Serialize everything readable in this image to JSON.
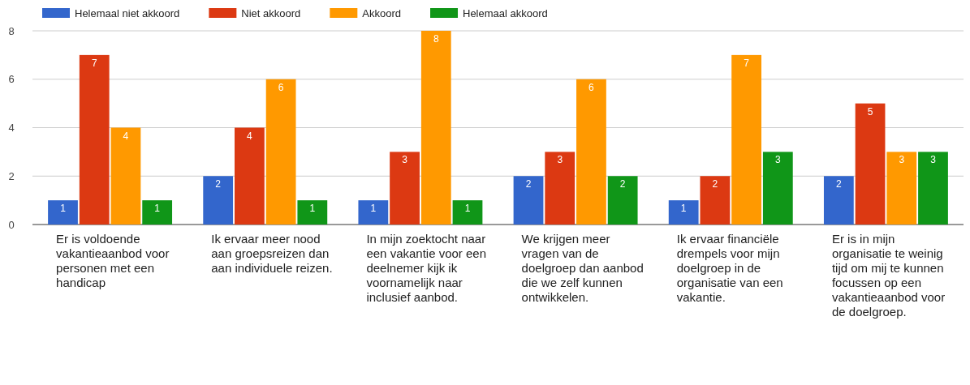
{
  "chart_data": {
    "type": "bar",
    "categories": [
      "Er is voldoende vakantieaanbod voor personen met een handicap",
      "Ik ervaar meer nood aan groepsreizen dan aan individuele reizen.",
      "In mijn zoektocht naar een vakantie voor een deelnemer kijk ik voornamelijk naar inclusief aanbod.",
      "We krijgen meer vragen van de doelgroep dan aanbod die we zelf kunnen ontwikkelen.",
      "Ik ervaar financiële drempels voor mijn doelgroep in de organisatie van een vakantie.",
      "Er is in mijn organisatie te weinig tijd om mij te kunnen focussen op een vakantieaanbod voor de doelgroep."
    ],
    "series": [
      {
        "name": "Helemaal niet akkoord",
        "color": "#3366cc",
        "values": [
          1,
          2,
          1,
          2,
          1,
          2
        ]
      },
      {
        "name": "Niet akkoord",
        "color": "#dc3912",
        "values": [
          7,
          4,
          3,
          3,
          2,
          5
        ]
      },
      {
        "name": "Akkoord",
        "color": "#ff9900",
        "values": [
          4,
          6,
          8,
          6,
          7,
          3
        ]
      },
      {
        "name": "Helemaal akkoord",
        "color": "#109618",
        "values": [
          1,
          1,
          1,
          2,
          3,
          3
        ]
      }
    ],
    "ylim": [
      0,
      8
    ],
    "yticks": [
      0,
      2,
      4,
      6,
      8
    ],
    "grid": "y",
    "legend": "top left",
    "data_labels": true
  }
}
